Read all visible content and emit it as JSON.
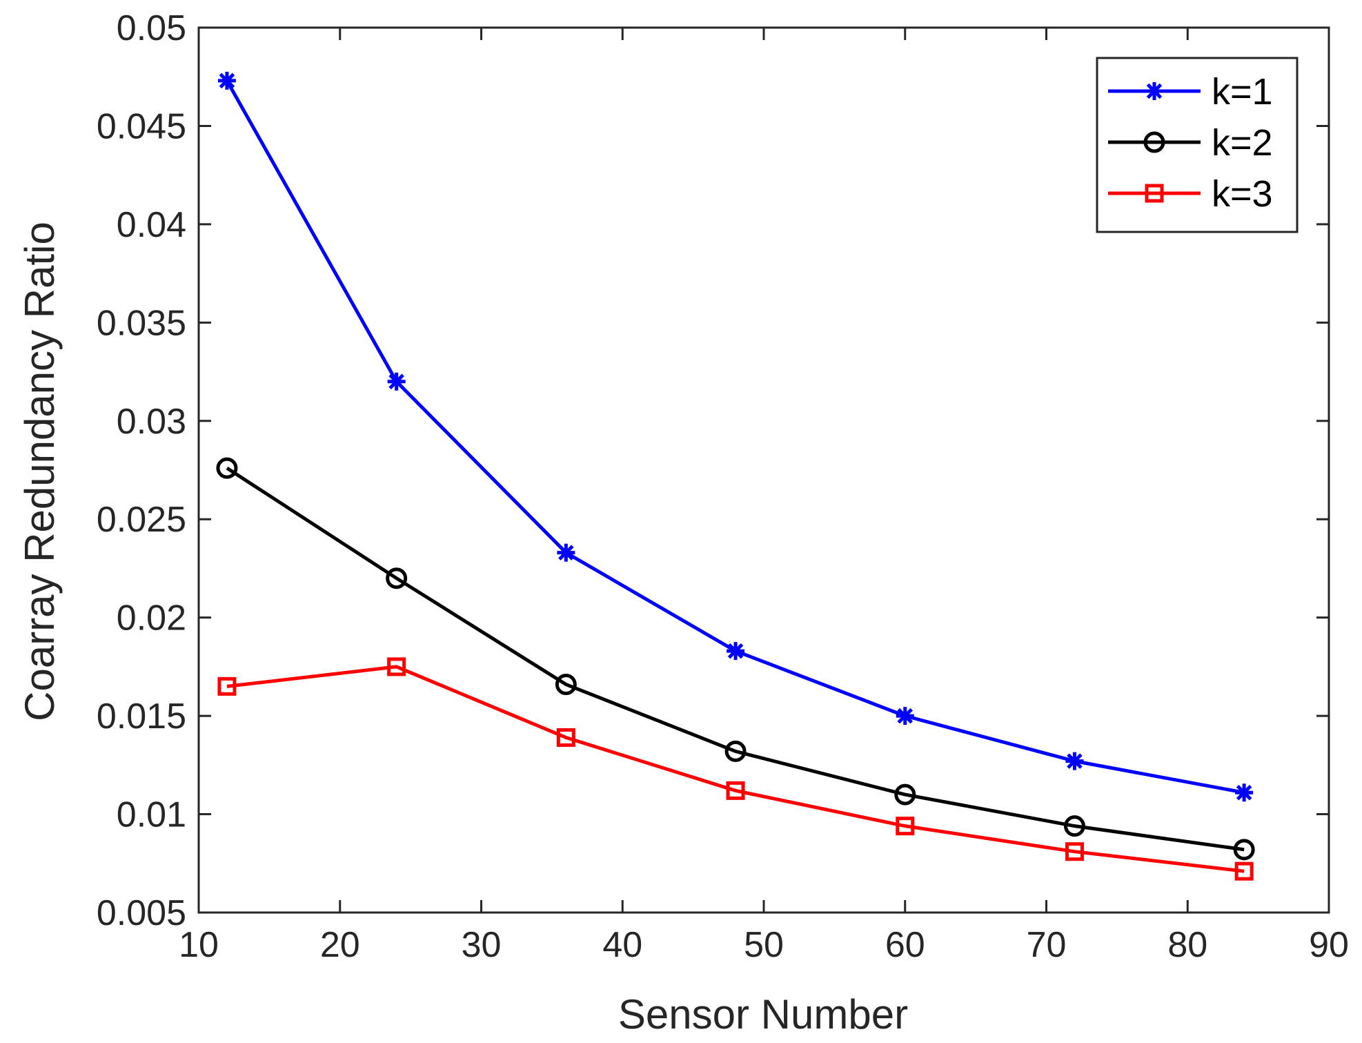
{
  "chart_data": {
    "type": "line",
    "title": "",
    "xlabel": "Sensor Number",
    "ylabel": "Coarray Redundancy Ratio",
    "xlim": [
      10,
      90
    ],
    "ylim": [
      0.005,
      0.05
    ],
    "xticks": [
      10,
      20,
      30,
      40,
      50,
      60,
      70,
      80,
      90
    ],
    "yticks": [
      0.005,
      0.01,
      0.015,
      0.02,
      0.025,
      0.03,
      0.035,
      0.04,
      0.045,
      0.05
    ],
    "xtick_labels": [
      "10",
      "20",
      "30",
      "40",
      "50",
      "60",
      "70",
      "80",
      "90"
    ],
    "ytick_labels": [
      "0.005",
      "0.01",
      "0.015",
      "0.02",
      "0.025",
      "0.03",
      "0.035",
      "0.04",
      "0.045",
      "0.05"
    ],
    "grid": false,
    "legend_position": "top-right",
    "x": [
      12,
      24,
      36,
      48,
      60,
      72,
      84
    ],
    "series": [
      {
        "name": "k=1",
        "color": "#0000ff",
        "marker": "asterisk",
        "values": [
          0.0473,
          0.032,
          0.0233,
          0.0183,
          0.015,
          0.0127,
          0.0111
        ]
      },
      {
        "name": "k=2",
        "color": "#000000",
        "marker": "circle",
        "values": [
          0.0276,
          0.022,
          0.0166,
          0.0132,
          0.011,
          0.0094,
          0.0082
        ]
      },
      {
        "name": "k=3",
        "color": "#ff0000",
        "marker": "square",
        "values": [
          0.0165,
          0.0175,
          0.0139,
          0.0112,
          0.0094,
          0.0081,
          0.0071
        ]
      }
    ]
  }
}
